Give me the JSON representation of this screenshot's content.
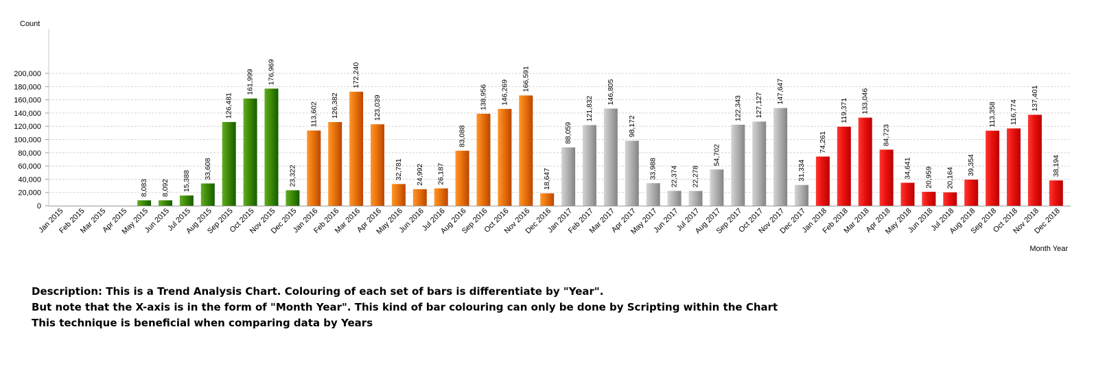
{
  "chart_data": {
    "type": "bar",
    "ylabel": "Count",
    "xlabel": "Month Year",
    "ylim": [
      0,
      200000
    ],
    "yticks": [
      0,
      20000,
      40000,
      60000,
      80000,
      100000,
      120000,
      140000,
      160000,
      180000,
      200000
    ],
    "ytick_labels": [
      "0",
      "20,000",
      "40,000",
      "60,000",
      "80,000",
      "100,000",
      "120,000",
      "140,000",
      "160,000",
      "180,000",
      "200,000"
    ],
    "grid": true,
    "categories": [
      "Jan 2015",
      "Feb 2015",
      "Mar 2015",
      "Apr 2015",
      "May 2015",
      "Jun 2015",
      "Jul 2015",
      "Aug 2015",
      "Sep 2015",
      "Oct 2015",
      "Nov 2015",
      "Dec 2015",
      "Jan 2016",
      "Feb 2016",
      "Mar 2016",
      "Apr 2016",
      "May 2016",
      "Jun 2016",
      "Jul 2016",
      "Aug 2016",
      "Sep 2016",
      "Oct 2016",
      "Nov 2016",
      "Dec 2016",
      "Jan 2017",
      "Feb 2017",
      "Mar 2017",
      "Apr 2017",
      "May 2017",
      "Jun 2017",
      "Jul 2017",
      "Aug 2017",
      "Sep 2017",
      "Oct 2017",
      "Nov 2017",
      "Dec 2017",
      "Jan 2018",
      "Feb 2018",
      "Mar 2018",
      "Apr 2018",
      "May 2018",
      "Jun 2018",
      "Jul 2018",
      "Aug 2018",
      "Sep 2018",
      "Oct 2018",
      "Nov 2018",
      "Dec 2018"
    ],
    "values": [
      null,
      null,
      null,
      null,
      8083,
      8092,
      15388,
      33608,
      126481,
      161999,
      176969,
      23322,
      113602,
      126382,
      172240,
      123039,
      32781,
      24992,
      26187,
      83088,
      138956,
      146269,
      166591,
      18647,
      88059,
      121832,
      146805,
      98172,
      33988,
      22374,
      22278,
      54702,
      122343,
      127127,
      147647,
      31334,
      74261,
      119371,
      133046,
      84723,
      34641,
      20959,
      20164,
      39354,
      113358,
      116774,
      137401,
      38194
    ],
    "value_labels": [
      "",
      "",
      "",
      "",
      "8,083",
      "8,092",
      "15,388",
      "33,608",
      "126,481",
      "161,999",
      "176,969",
      "23,322",
      "113,602",
      "126,382",
      "172,240",
      "123,039",
      "32,781",
      "24,992",
      "26,187",
      "83,088",
      "138,956",
      "146,269",
      "166,591",
      "18,647",
      "88,059",
      "121,832",
      "146,805",
      "98,172",
      "33,988",
      "22,374",
      "22,278",
      "54,702",
      "122,343",
      "127,127",
      "147,647",
      "31,334",
      "74,261",
      "119,371",
      "133,046",
      "84,723",
      "34,641",
      "20,959",
      "20,164",
      "39,354",
      "113,358",
      "116,774",
      "137,401",
      "38,194"
    ],
    "bar_colors_by_year": {
      "2015": "#3f8a05",
      "2016": "#e8730a",
      "2017": "#b1b1b1",
      "2018": "#e8130f"
    }
  },
  "description": {
    "lines": [
      "Description: This is a Trend Analysis Chart. Colouring of each set of bars is differentiate by \"Year\".",
      "But note that the X-axis is in the form of \"Month Year\". This kind of bar colouring can only be done by Scripting within the Chart",
      "This technique is beneficial when comparing data by Years"
    ]
  }
}
